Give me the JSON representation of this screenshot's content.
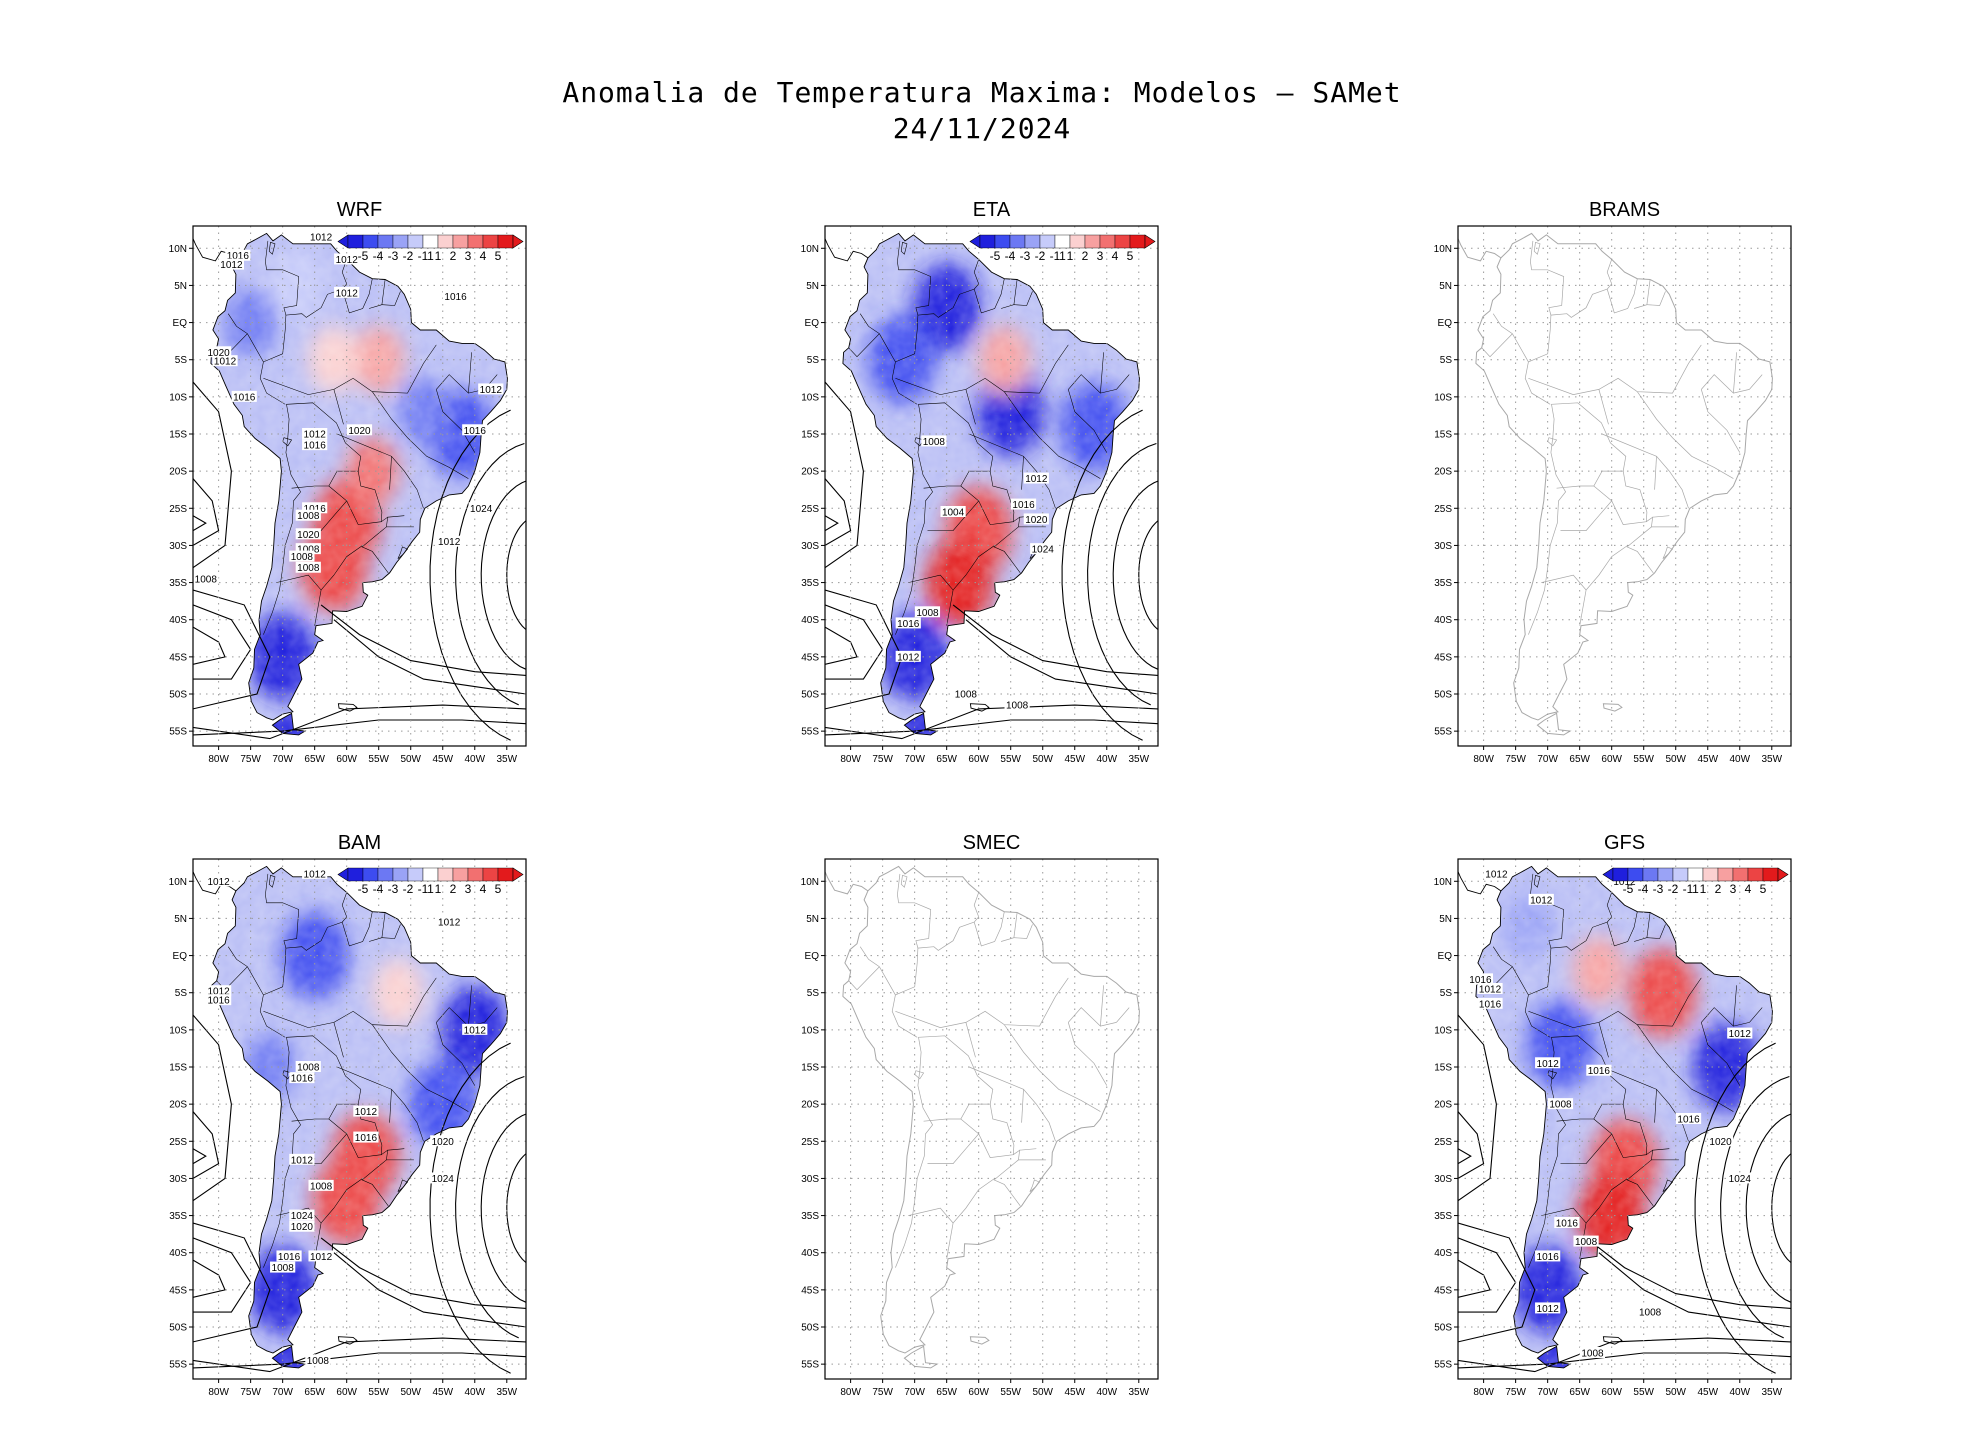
{
  "title": {
    "line1": "Anomalia de Temperatura Maxima: Modelos — SAMet",
    "line2": "24/11/2024"
  },
  "lat_labels": [
    "10N",
    "5N",
    "EQ",
    "5S",
    "10S",
    "15S",
    "20S",
    "25S",
    "30S",
    "35S",
    "40S",
    "45S",
    "50S",
    "55S"
  ],
  "lon_labels": [
    "80W",
    "75W",
    "70W",
    "65W",
    "60W",
    "55W",
    "50W",
    "45W",
    "40W",
    "35W"
  ],
  "colorbar_labels": [
    "-5",
    "-4",
    "-3",
    "-2",
    "-1",
    "1",
    "1",
    "2",
    "3",
    "4",
    "5"
  ],
  "colors": {
    "scale": [
      "#1f1fdd",
      "#3d4cf0",
      "#6c78f3",
      "#9aa3f6",
      "#c6cbfa",
      "#ffffff",
      "#fbd0d0",
      "#f7a0a0",
      "#f27070",
      "#ec4444",
      "#e31a1c"
    ],
    "land_outline_missing": "#a8a8a8",
    "frame": "#000000"
  },
  "panels": [
    {
      "name": "WRF",
      "has_data": true,
      "isobars": [
        "1012",
        "1012",
        "1016",
        "1012",
        "1012",
        "1016",
        "1012",
        "1020",
        "1012",
        "1016",
        "1012",
        "1016",
        "1016",
        "1020",
        "1024",
        "1008",
        "1012",
        "1016",
        "1008",
        "1020",
        "1008",
        "1008",
        "1008"
      ]
    },
    {
      "name": "ETA",
      "has_data": true,
      "isobars": [
        "1008",
        "1012",
        "1016",
        "1004",
        "1020",
        "1024",
        "1008",
        "1016",
        "1012",
        "1008",
        "1008"
      ]
    },
    {
      "name": "BRAMS",
      "has_data": false,
      "isobars": []
    },
    {
      "name": "BAM",
      "has_data": true,
      "isobars": [
        "1012",
        "1012",
        "1012",
        "1012",
        "1016",
        "1012",
        "1008",
        "1016",
        "1012",
        "1016",
        "1020",
        "1012",
        "1024",
        "1008",
        "1024",
        "1020",
        "1016",
        "1008",
        "1012",
        "1008"
      ]
    },
    {
      "name": "SMEC",
      "has_data": false,
      "isobars": []
    },
    {
      "name": "GFS",
      "has_data": true,
      "isobars": [
        "1012",
        "1012",
        "1012",
        "1016",
        "1012",
        "1016",
        "1012",
        "1016",
        "1008",
        "1012",
        "1016",
        "1020",
        "1024",
        "1016",
        "1008",
        "1016",
        "1012",
        "1008",
        "1008"
      ]
    }
  ],
  "anomaly_fields": {
    "WRF": [
      {
        "lon": -55,
        "lat": -5,
        "value": 2
      },
      {
        "lon": -62,
        "lat": -5,
        "value": 1
      },
      {
        "lon": -60,
        "lat": -27,
        "value": 4
      },
      {
        "lon": -62,
        "lat": -33,
        "value": 4
      },
      {
        "lon": -56,
        "lat": -20,
        "value": 3
      },
      {
        "lon": -42,
        "lat": -15,
        "value": -4
      },
      {
        "lon": -48,
        "lat": -12,
        "value": -3
      },
      {
        "lon": -70,
        "lat": -45,
        "value": -5
      },
      {
        "lon": -75,
        "lat": 0,
        "value": -3
      },
      {
        "lon": -68,
        "lat": 5,
        "value": -1
      }
    ],
    "ETA": [
      {
        "lon": -65,
        "lat": 2,
        "value": -5
      },
      {
        "lon": -55,
        "lat": -12,
        "value": -5
      },
      {
        "lon": -42,
        "lat": -14,
        "value": -4
      },
      {
        "lon": -56,
        "lat": -5,
        "value": 2
      },
      {
        "lon": -60,
        "lat": -28,
        "value": 4
      },
      {
        "lon": -63,
        "lat": -35,
        "value": 5
      },
      {
        "lon": -70,
        "lat": -45,
        "value": -5
      },
      {
        "lon": -72,
        "lat": -5,
        "value": -4
      }
    ],
    "BAM": [
      {
        "lon": -65,
        "lat": 0,
        "value": -4
      },
      {
        "lon": -40,
        "lat": -10,
        "value": -5
      },
      {
        "lon": -45,
        "lat": -20,
        "value": -4
      },
      {
        "lon": -57,
        "lat": -27,
        "value": 4
      },
      {
        "lon": -60,
        "lat": -33,
        "value": 4
      },
      {
        "lon": -52,
        "lat": -5,
        "value": 1
      },
      {
        "lon": -70,
        "lat": -45,
        "value": -5
      },
      {
        "lon": -72,
        "lat": -15,
        "value": -3
      }
    ],
    "GFS": [
      {
        "lon": -52,
        "lat": -5,
        "value": 4
      },
      {
        "lon": -62,
        "lat": -2,
        "value": 2
      },
      {
        "lon": -58,
        "lat": -28,
        "value": 4
      },
      {
        "lon": -60,
        "lat": -35,
        "value": 5
      },
      {
        "lon": -42,
        "lat": -15,
        "value": -5
      },
      {
        "lon": -68,
        "lat": -12,
        "value": -4
      },
      {
        "lon": -70,
        "lat": -45,
        "value": -5
      },
      {
        "lon": -73,
        "lat": 4,
        "value": -2
      }
    ]
  }
}
